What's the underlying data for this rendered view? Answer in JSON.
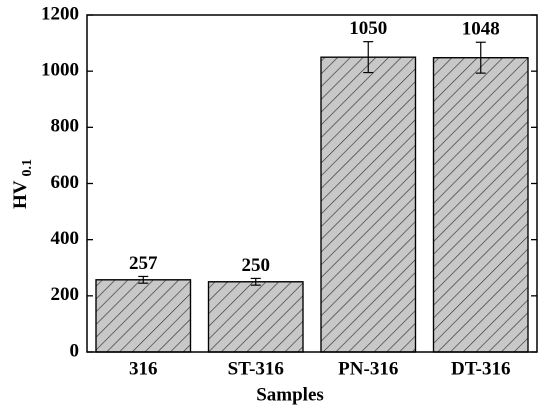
{
  "chart_data": {
    "type": "bar",
    "categories": [
      "316",
      "ST-316",
      "PN-316",
      "DT-316"
    ],
    "values": [
      257,
      250,
      1050,
      1048
    ],
    "errors": [
      12,
      12,
      55,
      55
    ],
    "color": "#c8c8c8",
    "x_label": "Samples",
    "y_label": "HV",
    "y_label_subscript": "0.1",
    "ylim": [
      0,
      1200
    ],
    "yticks": [
      0,
      200,
      400,
      600,
      800,
      1000,
      1200
    ],
    "grid": false
  }
}
